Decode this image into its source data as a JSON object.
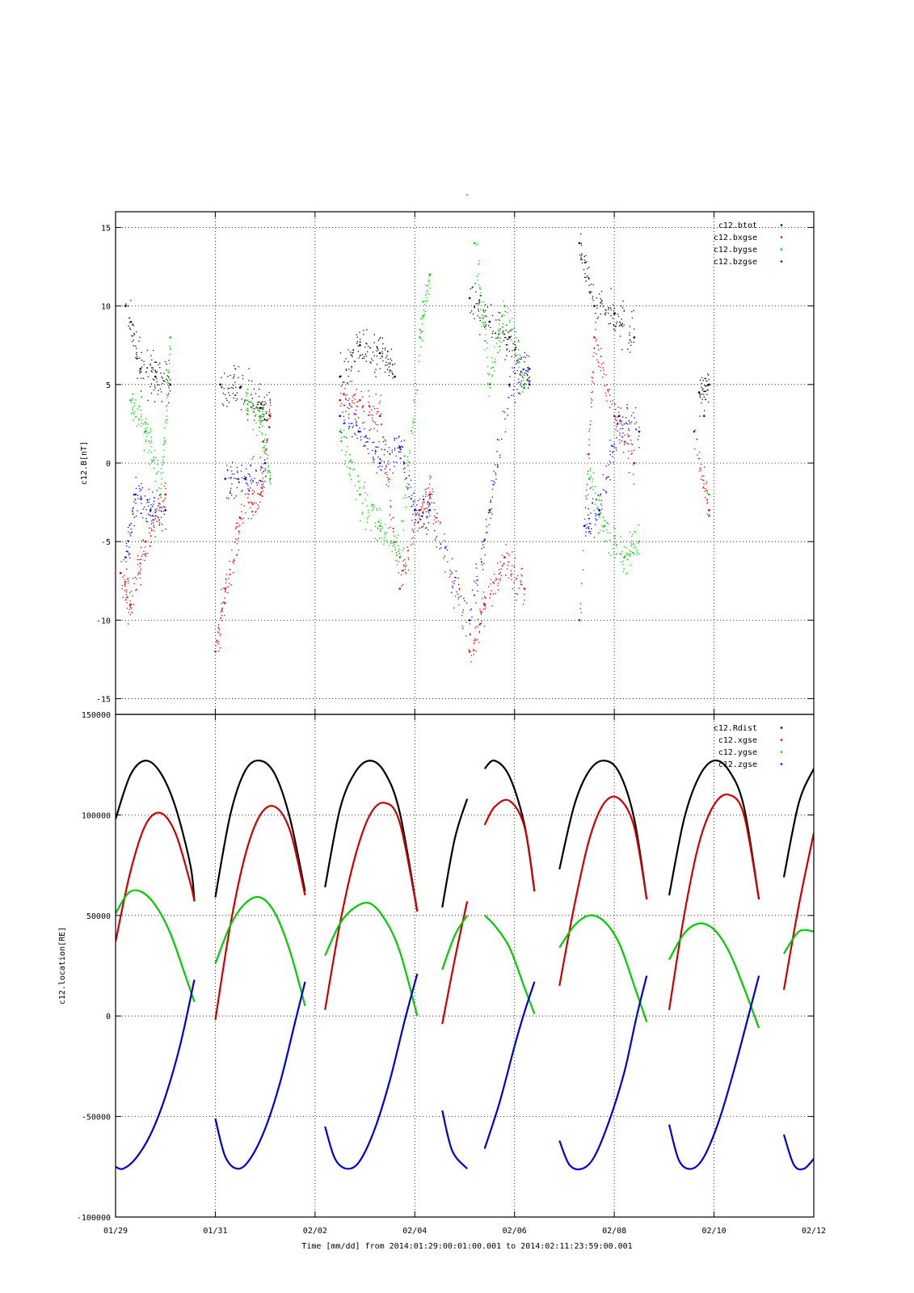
{
  "figure": {
    "top_title": "-",
    "xlabel": "Time [mm/dd]  from 2014:01:29:00:01:00.001  to  2014:02:11:23:59:00.001",
    "x_ticks": [
      "01/29",
      "01/31",
      "02/02",
      "02/04",
      "02/06",
      "02/08",
      "02/10",
      "02/12"
    ]
  },
  "chart_data": [
    {
      "type": "scatter",
      "ylabel": "c12.B[nT]",
      "ylim": [
        -16,
        16
      ],
      "y_ticks": [
        15,
        10,
        5,
        0,
        -5,
        -10,
        -15
      ],
      "xlim": [
        0,
        14
      ],
      "x_units": "days since 01/29",
      "grid": true,
      "legend_position": "top-right",
      "series": [
        {
          "name": "c12.btot",
          "color": "#000000",
          "x": [
            0.2,
            0.5,
            0.8,
            1.1,
            2.1,
            2.5,
            2.9,
            3.1,
            4.5,
            4.9,
            5.3,
            5.6,
            7.1,
            7.5,
            7.9,
            8.3,
            9.3,
            9.6,
            10.0,
            10.4,
            11.7,
            11.9
          ],
          "y": [
            10,
            6,
            5.5,
            5,
            5,
            4.8,
            3.5,
            3,
            5.5,
            7.5,
            7,
            5.5,
            10.5,
            9,
            8,
            5,
            14,
            10,
            9.5,
            8,
            4.5,
            5
          ]
        },
        {
          "name": "c12.bxgse",
          "color": "#cc0000",
          "x": [
            0.1,
            0.3,
            0.6,
            1.0,
            2.0,
            2.2,
            2.5,
            2.9,
            3.1,
            4.5,
            4.9,
            5.3,
            5.7,
            6.1,
            6.3,
            7.1,
            7.4,
            7.8,
            8.2,
            9.3,
            9.6,
            10.0,
            10.4,
            11.6,
            11.9
          ],
          "y": [
            -7,
            -9,
            -5,
            -2,
            -12,
            -8,
            -3.5,
            -2,
            3,
            4,
            4,
            3,
            -8,
            -3,
            -2,
            -12,
            -9,
            -6,
            -8,
            -10,
            8,
            3,
            0,
            2,
            -3
          ]
        },
        {
          "name": "c12.bygse",
          "color": "#00cc00",
          "x": [
            0.3,
            0.6,
            0.9,
            1.1,
            2.6,
            2.9,
            3.1,
            4.5,
            4.9,
            5.3,
            5.7,
            6.1,
            6.3,
            7.2,
            7.5,
            7.8,
            8.2,
            9.5,
            9.8,
            10.2,
            10.5,
            11.9
          ],
          "y": [
            4,
            2,
            -2,
            8,
            4,
            3,
            -1,
            2,
            -2,
            -4,
            -6,
            8,
            12,
            14,
            5,
            10,
            5,
            -1,
            -4,
            -6,
            -5,
            -2
          ]
        },
        {
          "name": "c12.bzgse",
          "color": "#0000cc",
          "x": [
            0.2,
            0.4,
            0.7,
            1.0,
            2.2,
            2.6,
            3.0,
            4.5,
            4.9,
            5.3,
            5.7,
            6.0,
            6.3,
            7.1,
            7.5,
            7.9,
            8.3,
            9.4,
            9.7,
            10.1,
            10.5,
            11.8
          ],
          "y": [
            -6,
            -2,
            -3,
            -3,
            -1,
            -1,
            0,
            3,
            2,
            0,
            1,
            -3,
            -3,
            -10,
            -3,
            5,
            6,
            -4,
            -3,
            3,
            2,
            3
          ]
        }
      ]
    },
    {
      "type": "line",
      "ylabel": "c12.location[RE]",
      "ylim": [
        -100000,
        150000
      ],
      "y_ticks": [
        150000,
        100000,
        50000,
        0,
        -50000,
        -100000
      ],
      "xlim": [
        0,
        14
      ],
      "x_units": "days since 01/29",
      "grid": true,
      "legend_position": "top-right",
      "series": [
        {
          "name": "c12.Rdist",
          "color": "#000000",
          "segments": [
            {
              "x": [
                0.0,
                0.3,
                0.6,
                0.9,
                1.2,
                1.5,
                1.58
              ],
              "y": [
                98000,
                120000,
                127000,
                121000,
                104000,
                75000,
                57000
              ]
            },
            {
              "x": [
                2.0,
                2.3,
                2.6,
                2.9,
                3.2,
                3.5,
                3.8
              ],
              "y": [
                59000,
                100000,
                122000,
                127000,
                120000,
                98000,
                62000
              ]
            },
            {
              "x": [
                4.2,
                4.5,
                4.8,
                5.1,
                5.4,
                5.7,
                6.05
              ],
              "y": [
                64000,
                103000,
                121000,
                127000,
                121000,
                101000,
                52000
              ]
            },
            {
              "x": [
                6.55,
                6.8,
                7.05
              ],
              "y": [
                54000,
                88000,
                108000
              ]
            },
            {
              "x": [
                7.4,
                7.6,
                7.9,
                8.2,
                8.4
              ],
              "y": [
                123000,
                127000,
                119000,
                95000,
                62000
              ]
            },
            {
              "x": [
                8.9,
                9.2,
                9.5,
                9.8,
                10.1,
                10.4,
                10.65
              ],
              "y": [
                73000,
                105000,
                122000,
                127000,
                121000,
                98000,
                58000
              ]
            },
            {
              "x": [
                11.1,
                11.4,
                11.7,
                12.0,
                12.3,
                12.6,
                12.9
              ],
              "y": [
                60000,
                98000,
                119000,
                127000,
                122000,
                104000,
                58000
              ]
            },
            {
              "x": [
                13.4,
                13.7,
                14.0
              ],
              "y": [
                69000,
                106000,
                123000
              ]
            }
          ]
        },
        {
          "name": "c12.xgse",
          "color": "#cc0000",
          "segments": [
            {
              "x": [
                0.0,
                0.3,
                0.6,
                0.9,
                1.2,
                1.5,
                1.58
              ],
              "y": [
                37000,
                72000,
                95000,
                101000,
                91000,
                66000,
                57000
              ]
            },
            {
              "x": [
                2.0,
                2.3,
                2.6,
                2.9,
                3.2,
                3.5,
                3.8
              ],
              "y": [
                -2000,
                45000,
                80000,
                100000,
                104000,
                92000,
                60000
              ]
            },
            {
              "x": [
                4.2,
                4.5,
                4.8,
                5.1,
                5.4,
                5.7,
                6.05
              ],
              "y": [
                3000,
                46000,
                79000,
                100000,
                106000,
                96000,
                52000
              ]
            },
            {
              "x": [
                6.55,
                6.8,
                7.05
              ],
              "y": [
                -4000,
                28000,
                57000
              ]
            },
            {
              "x": [
                7.4,
                7.6,
                7.9,
                8.2,
                8.4
              ],
              "y": [
                95000,
                104000,
                107000,
                94000,
                62000
              ]
            },
            {
              "x": [
                8.9,
                9.2,
                9.5,
                9.8,
                10.1,
                10.4,
                10.65
              ],
              "y": [
                15000,
                55000,
                88000,
                106000,
                108000,
                94000,
                58000
              ]
            },
            {
              "x": [
                11.1,
                11.4,
                11.7,
                12.0,
                12.3,
                12.6,
                12.9
              ],
              "y": [
                3000,
                50000,
                86000,
                105000,
                110000,
                100000,
                58000
              ]
            },
            {
              "x": [
                13.4,
                13.7,
                14.0
              ],
              "y": [
                13000,
                55000,
                91000
              ]
            }
          ]
        },
        {
          "name": "c12.ygse",
          "color": "#00cc00",
          "segments": [
            {
              "x": [
                0.0,
                0.25,
                0.5,
                0.8,
                1.1,
                1.4,
                1.58
              ],
              "y": [
                51000,
                61000,
                62000,
                55000,
                41000,
                20000,
                7000
              ]
            },
            {
              "x": [
                2.0,
                2.3,
                2.6,
                2.9,
                3.2,
                3.5,
                3.8
              ],
              "y": [
                26000,
                45000,
                56000,
                59000,
                51000,
                32000,
                5000
              ]
            },
            {
              "x": [
                4.2,
                4.5,
                4.8,
                5.1,
                5.4,
                5.7,
                6.05
              ],
              "y": [
                30000,
                46000,
                54000,
                56000,
                48000,
                32000,
                0
              ]
            },
            {
              "x": [
                6.55,
                6.8,
                7.05
              ],
              "y": [
                23000,
                40000,
                50000
              ]
            },
            {
              "x": [
                7.4,
                7.6,
                7.9,
                8.2,
                8.4
              ],
              "y": [
                50000,
                45000,
                34000,
                14000,
                1000
              ]
            },
            {
              "x": [
                8.9,
                9.2,
                9.5,
                9.8,
                10.1,
                10.4,
                10.65
              ],
              "y": [
                34000,
                45000,
                50000,
                47000,
                36000,
                15000,
                -3000
              ]
            },
            {
              "x": [
                11.1,
                11.4,
                11.7,
                12.0,
                12.3,
                12.6,
                12.9
              ],
              "y": [
                28000,
                41000,
                46000,
                43000,
                32000,
                14000,
                -6000
              ]
            },
            {
              "x": [
                13.4,
                13.7,
                14.0
              ],
              "y": [
                31000,
                42000,
                42000
              ]
            }
          ]
        },
        {
          "name": "c12.zgse",
          "color": "#0000cc",
          "segments": [
            {
              "x": [
                0.0,
                0.15,
                0.4,
                0.7,
                1.0,
                1.3,
                1.58
              ],
              "y": [
                -75000,
                -76000,
                -71000,
                -59000,
                -40000,
                -14000,
                18000
              ]
            },
            {
              "x": [
                2.0,
                2.2,
                2.45,
                2.7,
                3.0,
                3.3,
                3.6,
                3.8
              ],
              "y": [
                -51000,
                -70000,
                -76000,
                -71000,
                -56000,
                -33000,
                -3000,
                17000
              ]
            },
            {
              "x": [
                4.2,
                4.4,
                4.65,
                4.9,
                5.2,
                5.5,
                5.8,
                6.05
              ],
              "y": [
                -55000,
                -71000,
                -76000,
                -72000,
                -56000,
                -32000,
                -2000,
                21000
              ]
            },
            {
              "x": [
                6.55,
                6.75,
                7.05
              ],
              "y": [
                -47000,
                -67000,
                -76000
              ]
            },
            {
              "x": [
                7.4,
                7.7,
                8.0,
                8.2,
                8.4
              ],
              "y": [
                -66000,
                -43000,
                -15000,
                2000,
                17000
              ]
            },
            {
              "x": [
                8.9,
                9.1,
                9.35,
                9.6,
                9.9,
                10.2,
                10.45,
                10.65
              ],
              "y": [
                -62000,
                -74000,
                -76000,
                -70000,
                -52000,
                -28000,
                0,
                20000
              ]
            },
            {
              "x": [
                11.1,
                11.3,
                11.55,
                11.8,
                12.1,
                12.4,
                12.7,
                12.9
              ],
              "y": [
                -54000,
                -72000,
                -76000,
                -70000,
                -52000,
                -27000,
                1000,
                20000
              ]
            },
            {
              "x": [
                13.4,
                13.6,
                13.8,
                14.0
              ],
              "y": [
                -59000,
                -74000,
                -76000,
                -71000
              ]
            }
          ]
        }
      ]
    }
  ]
}
